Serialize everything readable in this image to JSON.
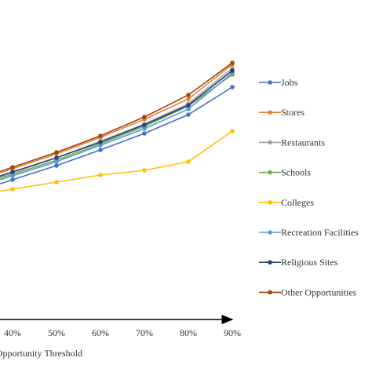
{
  "chart_data": {
    "type": "line",
    "xlabel": "Opportunity Threshold",
    "categories": [
      "40%",
      "50%",
      "60%",
      "70%",
      "80%",
      "90%"
    ],
    "legend_position": "right",
    "grid": false,
    "series": [
      {
        "name": "Jobs",
        "color": "#4472C4",
        "values": [
          0.229,
          0.211,
          0.191,
          0.17,
          0.146,
          0.111
        ]
      },
      {
        "name": "Stores",
        "color": "#ED7D31",
        "values": [
          0.215,
          0.196,
          0.175,
          0.152,
          0.126,
          0.082
        ]
      },
      {
        "name": "Restaurants",
        "color": "#A5A5A5",
        "values": [
          0.22,
          0.201,
          0.18,
          0.158,
          0.132,
          0.087
        ]
      },
      {
        "name": "Schools",
        "color": "#70AD47",
        "values": [
          0.222,
          0.204,
          0.183,
          0.161,
          0.135,
          0.095
        ]
      },
      {
        "name": "Colleges",
        "color": "#FFC000",
        "values": [
          0.241,
          0.232,
          0.223,
          0.217,
          0.206,
          0.167
        ]
      },
      {
        "name": "Recreation Facilities",
        "color": "#5B9BD5",
        "values": [
          0.224,
          0.206,
          0.185,
          0.164,
          0.139,
          0.093
        ]
      },
      {
        "name": "Religious Sites",
        "color": "#264478",
        "values": [
          0.219,
          0.201,
          0.181,
          0.159,
          0.134,
          0.09
        ]
      },
      {
        "name": "Other Opportunities",
        "color": "#9E480E",
        "values": [
          0.213,
          0.194,
          0.173,
          0.149,
          0.121,
          0.08
        ]
      }
    ]
  }
}
